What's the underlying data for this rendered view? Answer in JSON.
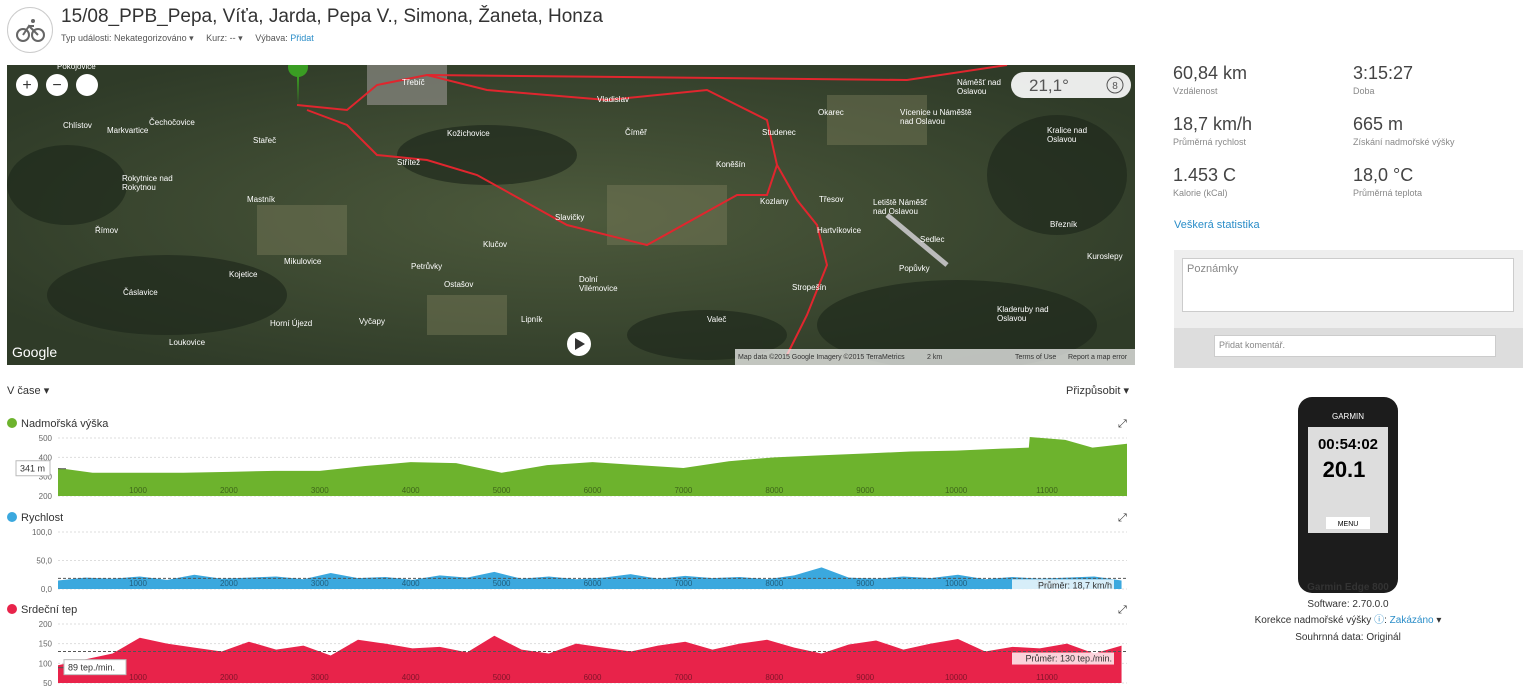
{
  "header": {
    "title": "15/08_PPB_Pepa, Víťa, Jarda, Pepa V., Simona, Žaneta, Honza",
    "event_type_label": "Typ události:",
    "event_type": "Nekategorizováno",
    "course_label": "Kurz:",
    "course": "--",
    "gear_label": "Výbava:",
    "gear_action": "Přidat"
  },
  "map": {
    "temperature": "21,1°",
    "wind": "8",
    "logo": "Google",
    "attribution": "Map data ©2015 Google Imagery ©2015 TerraMetrics",
    "scale": "2 km",
    "terms": "Terms of Use",
    "report": "Report a map error",
    "places": [
      "Pokojovice",
      "Třebíč",
      "Vladislav",
      "Chlístov",
      "Markvartice",
      "Čechočovice",
      "Kožichovice",
      "Stařeč",
      "Střítež",
      "Číměř",
      "Studenec",
      "Okarec",
      "Vícenice u Náměště nad Oslavou",
      "Náměšť nad Oslavou",
      "Kralice nad Oslavou",
      "Rokytnice nad Rokytnou",
      "Mastník",
      "Koněšín",
      "Kozlany",
      "Třesov",
      "Letiště Náměšť nad Oslavou",
      "Slavičky",
      "Hartvíkovice",
      "Sedlec",
      "Březník",
      "Římov",
      "Klučov",
      "Mikulovice",
      "Petrůvky",
      "Kojetice",
      "Ostašov",
      "Dolní Vilémovice",
      "Popůvky",
      "Kuroslepy",
      "Čáslavice",
      "Stropešín",
      "Horní Újezd",
      "Vyčapy",
      "Lipník",
      "Valeč",
      "Kladeruby nad Oslavou",
      "Loukovice"
    ]
  },
  "stats": [
    {
      "value": "60,84 km",
      "label": "Vzdálenost"
    },
    {
      "value": "3:15:27",
      "label": "Doba"
    },
    {
      "value": "18,7 km/h",
      "label": "Průměrná rychlost"
    },
    {
      "value": "665 m",
      "label": "Získání nadmořské výšky"
    },
    {
      "value": "1.453 C",
      "label": "Kalorie (kCal)"
    },
    {
      "value": "18,0 °C",
      "label": "Průměrná teplota"
    }
  ],
  "stats_link": "Veškerá statistika",
  "notes_placeholder": "Poznámky",
  "comment_placeholder": "Přidat komentář.",
  "device": {
    "brand": "GARMIN",
    "screen_time": "00:54:02",
    "screen_speed": "20.1",
    "screen_menu": "MENU",
    "name": "Garmin Edge 800",
    "software": "Software: 2.70.0.0",
    "elevation_correction": "Korekce nadmořské výšky",
    "elevation_correction_value": "Zakázáno",
    "summary": "Souhrnná data: Originál"
  },
  "charts": {
    "mode": "V čase",
    "fit": "Přizpůsobit",
    "xlim": [
      120,
      11880
    ],
    "xticks": [
      1000,
      2000,
      3000,
      4000,
      5000,
      6000,
      7000,
      8000,
      9000,
      10000,
      11000
    ],
    "panels": [
      {
        "type": "area",
        "name": "Nadmořská výška",
        "color": "#6db32d",
        "ylim": [
          200,
          500
        ],
        "yticks": [
          200,
          300,
          400,
          500
        ],
        "cursor_value": 341,
        "cursor_label": "341 m",
        "x": [
          120,
          500,
          1000,
          1500,
          2000,
          2500,
          3000,
          3500,
          4000,
          4500,
          5000,
          5500,
          6000,
          6500,
          7000,
          7500,
          8000,
          8500,
          9000,
          9500,
          10000,
          10500,
          10800,
          10810,
          11200,
          11500,
          11880
        ],
        "values": [
          345,
          320,
          320,
          320,
          325,
          330,
          330,
          355,
          375,
          370,
          320,
          360,
          375,
          360,
          345,
          380,
          400,
          410,
          420,
          430,
          435,
          445,
          450,
          505,
          490,
          450,
          470
        ]
      },
      {
        "type": "area",
        "name": "Rychlost",
        "color": "#3ba8de",
        "ylim": [
          0,
          100
        ],
        "yticks": [
          {
            "value": 0,
            "label": "0,0"
          },
          {
            "value": 50,
            "label": "50,0"
          },
          {
            "value": 100,
            "label": "100,0"
          }
        ],
        "average": 18.7,
        "average_label": "Průměr: 18,7 km/h",
        "x": [
          120,
          420,
          720,
          1020,
          1320,
          1620,
          1920,
          2220,
          2520,
          2820,
          3120,
          3420,
          3720,
          4020,
          4320,
          4620,
          4920,
          5220,
          5520,
          5820,
          6120,
          6420,
          6720,
          7020,
          7320,
          7620,
          7920,
          8220,
          8520,
          8820,
          9120,
          9420,
          9720,
          10020,
          10320,
          10620,
          10920,
          11220,
          11520,
          11820
        ],
        "values": [
          15,
          20,
          18,
          22,
          16,
          25,
          18,
          20,
          22,
          17,
          28,
          19,
          21,
          16,
          24,
          20,
          30,
          18,
          22,
          17,
          20,
          26,
          18,
          23,
          19,
          21,
          17,
          24,
          38,
          20,
          18,
          22,
          19,
          25,
          17,
          21,
          18,
          20,
          22,
          15
        ]
      },
      {
        "type": "area",
        "name": "Srdeční tep",
        "color": "#e8234a",
        "ylim": [
          50,
          200
        ],
        "yticks": [
          50,
          100,
          150,
          200
        ],
        "cursor_value": 89,
        "cursor_label": "89 tep./min.",
        "average": 130,
        "average_label": "Průměr: 130 tep./min.",
        "x": [
          120,
          420,
          720,
          1020,
          1320,
          1620,
          1920,
          2220,
          2520,
          2820,
          3120,
          3420,
          3720,
          4020,
          4320,
          4620,
          4920,
          5220,
          5520,
          5820,
          6120,
          6420,
          6720,
          7020,
          7320,
          7620,
          7920,
          8220,
          8520,
          8820,
          9120,
          9420,
          9720,
          10020,
          10320,
          10620,
          10920,
          11220,
          11520,
          11820
        ],
        "values": [
          95,
          110,
          125,
          165,
          150,
          140,
          130,
          155,
          135,
          145,
          120,
          160,
          150,
          138,
          142,
          128,
          170,
          135,
          125,
          150,
          140,
          130,
          145,
          155,
          135,
          150,
          160,
          140,
          125,
          148,
          158,
          135,
          150,
          162,
          130,
          142,
          138,
          150,
          125,
          145
        ]
      }
    ]
  }
}
